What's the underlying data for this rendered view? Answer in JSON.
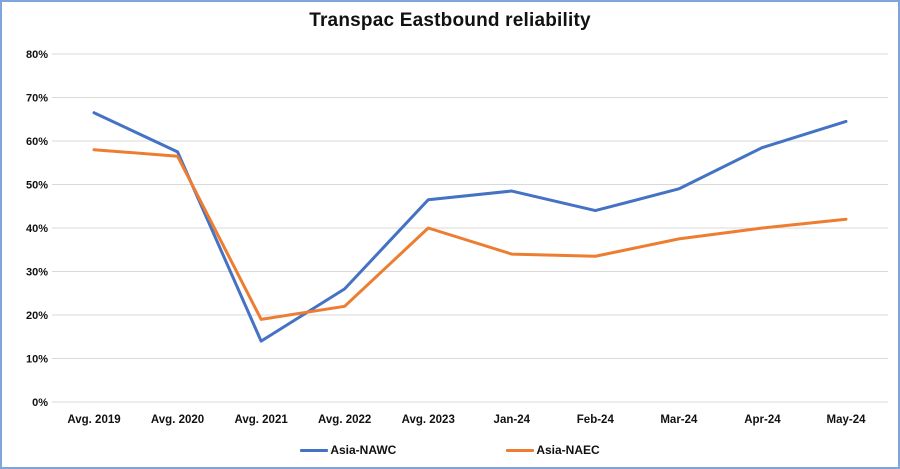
{
  "title": "Transpac Eastbound reliability",
  "chart_data": {
    "type": "line",
    "title": "Transpac Eastbound reliability",
    "categories": [
      "Avg. 2019",
      "Avg. 2020",
      "Avg. 2021",
      "Avg. 2022",
      "Avg. 2023",
      "Jan-24",
      "Feb-24",
      "Mar-24",
      "Apr-24",
      "May-24"
    ],
    "series": [
      {
        "name": "Asia-NAWC",
        "color": "#4472C4",
        "values": [
          66.5,
          57.5,
          14,
          26,
          46.5,
          48.5,
          44,
          49,
          58.5,
          64.5
        ]
      },
      {
        "name": "Asia-NAEC",
        "color": "#ED7D31",
        "values": [
          58,
          56.5,
          19,
          22,
          40,
          34,
          33.5,
          37.5,
          40,
          42
        ]
      }
    ],
    "xlabel": "",
    "ylabel": "",
    "ylim": [
      0,
      80
    ],
    "yticks": [
      0,
      10,
      20,
      30,
      40,
      50,
      60,
      70,
      80
    ],
    "ytick_suffix": "%",
    "grid": true,
    "legend_position": "bottom"
  },
  "colors": {
    "frame_border": "#7EA6DB",
    "gridline": "#D9D9D9",
    "text": "#111111"
  }
}
